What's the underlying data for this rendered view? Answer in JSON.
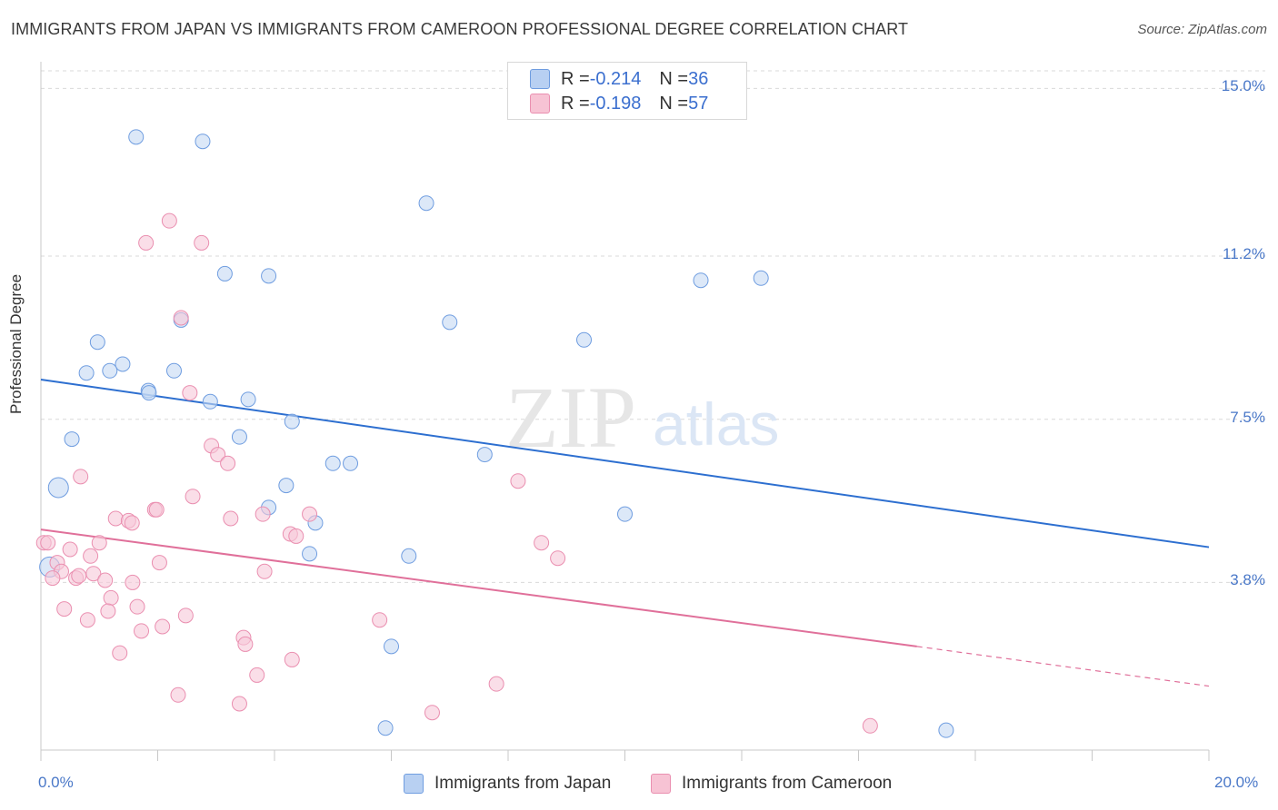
{
  "header": {
    "title": "IMMIGRANTS FROM JAPAN VS IMMIGRANTS FROM CAMEROON PROFESSIONAL DEGREE CORRELATION CHART",
    "source": "Source: ZipAtlas.com"
  },
  "watermark": {
    "zip": "ZIP",
    "atlas": "atlas"
  },
  "legend_top": {
    "rows": [
      {
        "r_label": "R = ",
        "r_value": "-0.214",
        "n_label": "N = ",
        "n_value": "36",
        "color": "#b8d0f2"
      },
      {
        "r_label": "R = ",
        "r_value": "-0.198",
        "n_label": "N = ",
        "n_value": "57",
        "color": "#f7c3d4"
      }
    ]
  },
  "legend_bottom": {
    "items": [
      {
        "label": "Immigrants from Japan",
        "color": "#b8d0f2"
      },
      {
        "label": "Immigrants from Cameroon",
        "color": "#f7c3d4"
      }
    ]
  },
  "chart_data": {
    "type": "scatter",
    "title": "IMMIGRANTS FROM JAPAN VS IMMIGRANTS FROM CAMEROON PROFESSIONAL DEGREE CORRELATION CHART",
    "xlabel": "",
    "ylabel": "Professional Degree",
    "xlim": [
      0,
      20
    ],
    "ylim": [
      0,
      15.4
    ],
    "x_tick_labels": [
      "0.0%",
      "20.0%"
    ],
    "y_ticks": [
      3.8,
      7.5,
      11.2,
      15.0
    ],
    "y_tick_labels": [
      "3.8%",
      "7.5%",
      "11.2%",
      "15.0%"
    ],
    "grid": true,
    "legend_position": "top-center",
    "series": [
      {
        "name": "Immigrants from Japan",
        "color": "#6f9de0",
        "fill": "#c4d8f4",
        "points": [
          [
            1.63,
            13.9
          ],
          [
            2.77,
            13.8
          ],
          [
            6.6,
            12.4
          ],
          [
            3.15,
            10.8
          ],
          [
            3.9,
            10.75
          ],
          [
            11.3,
            10.65
          ],
          [
            12.33,
            10.7
          ],
          [
            2.4,
            9.75
          ],
          [
            7.0,
            9.7
          ],
          [
            9.3,
            9.3
          ],
          [
            0.97,
            9.25
          ],
          [
            1.4,
            8.75
          ],
          [
            0.78,
            8.55
          ],
          [
            1.18,
            8.6
          ],
          [
            2.28,
            8.6
          ],
          [
            1.84,
            8.15
          ],
          [
            1.85,
            8.1
          ],
          [
            2.9,
            7.9
          ],
          [
            3.55,
            7.95
          ],
          [
            4.3,
            7.45
          ],
          [
            0.53,
            7.05
          ],
          [
            3.4,
            7.1
          ],
          [
            7.6,
            6.7
          ],
          [
            5.0,
            6.5
          ],
          [
            5.3,
            6.5
          ],
          [
            4.2,
            6.0
          ],
          [
            0.3,
            5.95
          ],
          [
            3.9,
            5.5
          ],
          [
            10.0,
            5.35
          ],
          [
            4.7,
            5.15
          ],
          [
            4.6,
            4.45
          ],
          [
            6.3,
            4.4
          ],
          [
            0.15,
            4.15
          ],
          [
            6.0,
            2.35
          ],
          [
            5.9,
            0.5
          ],
          [
            15.5,
            0.45
          ]
        ],
        "trend": {
          "x0": 0,
          "y0": 8.4,
          "x1": 20,
          "y1": 4.6
        }
      },
      {
        "name": "Immigrants from Cameroon",
        "color": "#ea8fb0",
        "fill": "#f7c8d8",
        "points": [
          [
            2.2,
            12.0
          ],
          [
            1.8,
            11.5
          ],
          [
            2.75,
            11.5
          ],
          [
            2.4,
            9.8
          ],
          [
            2.55,
            8.1
          ],
          [
            2.92,
            6.9
          ],
          [
            3.03,
            6.7
          ],
          [
            3.2,
            6.5
          ],
          [
            8.17,
            6.1
          ],
          [
            0.68,
            6.2
          ],
          [
            2.6,
            5.75
          ],
          [
            1.95,
            5.45
          ],
          [
            1.98,
            5.45
          ],
          [
            4.6,
            5.35
          ],
          [
            3.8,
            5.35
          ],
          [
            1.28,
            5.25
          ],
          [
            1.5,
            5.2
          ],
          [
            1.56,
            5.15
          ],
          [
            3.25,
            5.25
          ],
          [
            4.27,
            4.9
          ],
          [
            4.37,
            4.85
          ],
          [
            8.57,
            4.7
          ],
          [
            0.05,
            4.7
          ],
          [
            0.12,
            4.7
          ],
          [
            1.0,
            4.7
          ],
          [
            0.5,
            4.55
          ],
          [
            8.85,
            4.35
          ],
          [
            0.85,
            4.4
          ],
          [
            0.28,
            4.25
          ],
          [
            2.03,
            4.25
          ],
          [
            0.35,
            4.05
          ],
          [
            3.83,
            4.05
          ],
          [
            0.9,
            4.0
          ],
          [
            0.6,
            3.9
          ],
          [
            0.65,
            3.95
          ],
          [
            0.2,
            3.9
          ],
          [
            1.1,
            3.85
          ],
          [
            1.57,
            3.8
          ],
          [
            1.2,
            3.45
          ],
          [
            1.65,
            3.25
          ],
          [
            0.4,
            3.2
          ],
          [
            1.15,
            3.15
          ],
          [
            2.48,
            3.05
          ],
          [
            0.8,
            2.95
          ],
          [
            5.8,
            2.95
          ],
          [
            2.08,
            2.8
          ],
          [
            1.72,
            2.7
          ],
          [
            3.47,
            2.55
          ],
          [
            3.5,
            2.4
          ],
          [
            1.35,
            2.2
          ],
          [
            4.3,
            2.05
          ],
          [
            3.7,
            1.7
          ],
          [
            7.8,
            1.5
          ],
          [
            2.35,
            1.25
          ],
          [
            3.4,
            1.05
          ],
          [
            6.7,
            0.85
          ],
          [
            14.2,
            0.55
          ]
        ],
        "trend": {
          "x0": 0,
          "y0": 5.0,
          "x1": 15.0,
          "y1": 2.35
        },
        "trend_dashed": {
          "x0": 15.0,
          "y0": 2.35,
          "x1": 20,
          "y1": 1.45
        }
      }
    ]
  }
}
